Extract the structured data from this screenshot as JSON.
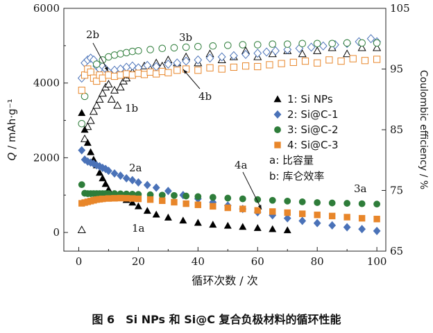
{
  "caption": "图 6　Si NPs 和 Si@C 复合负极材料的循环性能",
  "chart_data": {
    "type": "scatter",
    "xlabel": "循环次数 / 次",
    "ylabel_left_symbol": "Q",
    "ylabel_left_unit": " / mAh·g⁻¹",
    "ylabel_right": "Coulombic efficiency / %",
    "xlim": [
      -5,
      103
    ],
    "ylim_left": [
      -500,
      6000
    ],
    "ylim_right": [
      65,
      105
    ],
    "xticks": [
      0,
      20,
      40,
      60,
      80,
      100
    ],
    "yticks_left": [
      0,
      2000,
      4000,
      6000
    ],
    "yticks_right": [
      65,
      75,
      85,
      95,
      105
    ],
    "grid": false,
    "legend": {
      "placement": "right-middle",
      "entries": [
        "1: Si NPs",
        "2: Si@C-1",
        "3: Si@C-2",
        "4: Si@C-3"
      ]
    },
    "legend_note": [
      "a: 比容量",
      "b: 库仑效率"
    ],
    "curve_labels": {
      "1a": "1a",
      "2a": "2a",
      "3a": "3a",
      "4a": "4a",
      "1b": "1b",
      "2b": "2b",
      "3b": "3b",
      "4b": "4b"
    },
    "series": [
      {
        "name": "1: Si NPs",
        "color": "#000000",
        "marker": "triangle",
        "capacity": {
          "x": [
            1,
            2,
            3,
            4,
            5,
            6,
            7,
            8,
            9,
            10,
            12,
            14,
            16,
            18,
            20,
            23,
            26,
            30,
            35,
            40,
            45,
            50,
            55,
            60,
            65,
            70
          ],
          "y": [
            3200,
            2750,
            2400,
            2150,
            1950,
            1800,
            1600,
            1450,
            1300,
            1150,
            1020,
            950,
            870,
            800,
            700,
            580,
            480,
            400,
            320,
            260,
            210,
            180,
            150,
            120,
            90,
            60
          ]
        },
        "efficiency": {
          "x": [
            1,
            2,
            3,
            4,
            5,
            6,
            7,
            8,
            9,
            10,
            11,
            12,
            13,
            14,
            15,
            16,
            17,
            18,
            20,
            22,
            24,
            26,
            28,
            30,
            33,
            36,
            40,
            44,
            48,
            52,
            56,
            60,
            65,
            70,
            75,
            80,
            85,
            90,
            95,
            100
          ],
          "y": [
            68.5,
            83.5,
            85.5,
            86.5,
            88.0,
            89.0,
            90.0,
            91.0,
            92.0,
            92.5,
            90.0,
            91.5,
            89.0,
            92.0,
            93.0,
            93.5,
            94.0,
            94.5,
            95.0,
            95.5,
            95.0,
            96.0,
            95.5,
            96.5,
            96.0,
            97.0,
            96.0,
            97.5,
            96.5,
            97.0,
            98.0,
            97.0,
            97.5,
            98.0,
            97.5,
            98.0,
            98.5,
            97.5,
            98.5,
            98.5
          ]
        }
      },
      {
        "name": "2: Si@C-1",
        "color": "#4a72b8",
        "marker": "diamond",
        "capacity": {
          "x": [
            1,
            2,
            3,
            4,
            5,
            6,
            7,
            8,
            9,
            10,
            12,
            14,
            16,
            18,
            20,
            23,
            26,
            30,
            35,
            40,
            45,
            50,
            55,
            60,
            65,
            70,
            75,
            80,
            85,
            90,
            95,
            100
          ],
          "y": [
            2200,
            1950,
            1900,
            1870,
            1840,
            1800,
            1770,
            1730,
            1700,
            1650,
            1580,
            1520,
            1450,
            1400,
            1340,
            1270,
            1200,
            1110,
            1000,
            900,
            810,
            720,
            630,
            540,
            460,
            380,
            310,
            250,
            190,
            140,
            90,
            40
          ]
        },
        "efficiency": {
          "x": [
            1,
            2,
            3,
            4,
            5,
            6,
            7,
            8,
            9,
            10,
            12,
            14,
            16,
            18,
            20,
            23,
            26,
            30,
            33,
            36,
            40,
            44,
            48,
            52,
            56,
            60,
            63,
            66,
            70,
            74,
            78,
            82,
            86,
            90,
            94,
            98,
            100
          ],
          "y": [
            93.5,
            96.0,
            96.5,
            96.8,
            96.5,
            95.5,
            95.0,
            95.5,
            95.0,
            94.5,
            94.8,
            95.0,
            95.3,
            95.5,
            95.2,
            95.6,
            95.4,
            95.8,
            96.0,
            96.3,
            96.5,
            96.8,
            97.0,
            97.2,
            97.4,
            97.6,
            97.8,
            98.0,
            98.2,
            98.4,
            98.6,
            98.8,
            99.0,
            99.2,
            99.5,
            100.0,
            99.5
          ]
        }
      },
      {
        "name": "3: Si@C-2",
        "color": "#2e7d3a",
        "marker": "circle",
        "capacity": {
          "x": [
            1,
            2,
            3,
            4,
            5,
            6,
            7,
            8,
            9,
            10,
            12,
            14,
            16,
            18,
            20,
            24,
            28,
            32,
            36,
            40,
            45,
            50,
            55,
            60,
            65,
            70,
            75,
            80,
            85,
            90,
            95,
            100
          ],
          "y": [
            1280,
            1050,
            1040,
            1040,
            1040,
            1040,
            1040,
            1040,
            1040,
            1040,
            1040,
            1035,
            1030,
            1025,
            1020,
            1010,
            1000,
            990,
            975,
            960,
            940,
            920,
            900,
            880,
            860,
            840,
            820,
            800,
            790,
            780,
            770,
            760
          ]
        },
        "efficiency": {
          "x": [
            1,
            2,
            4,
            6,
            8,
            10,
            12,
            14,
            16,
            18,
            20,
            24,
            28,
            32,
            36,
            40,
            45,
            50,
            55,
            60,
            65,
            70,
            75,
            80,
            85,
            90,
            95,
            100
          ],
          "y": [
            86.0,
            90.5,
            94.5,
            95.8,
            96.5,
            97.0,
            97.3,
            97.5,
            97.7,
            97.9,
            98.0,
            98.2,
            98.4,
            98.5,
            98.6,
            98.7,
            98.8,
            98.9,
            99.0,
            99.0,
            99.1,
            99.1,
            99.2,
            99.2,
            99.2,
            99.3,
            99.3,
            99.3
          ]
        }
      },
      {
        "name": "4: Si@C-3",
        "color": "#e8862a",
        "marker": "square",
        "capacity": {
          "x": [
            1,
            2,
            3,
            4,
            5,
            6,
            7,
            8,
            10,
            12,
            14,
            16,
            18,
            20,
            24,
            28,
            32,
            36,
            40,
            45,
            50,
            55,
            60,
            65,
            70,
            75,
            80,
            85,
            90,
            95,
            100
          ],
          "y": [
            780,
            800,
            820,
            840,
            860,
            880,
            890,
            900,
            910,
            915,
            920,
            915,
            910,
            900,
            880,
            850,
            810,
            770,
            740,
            700,
            660,
            630,
            590,
            560,
            530,
            500,
            470,
            440,
            410,
            380,
            360
          ]
        },
        "efficiency": {
          "x": [
            1,
            2,
            3,
            4,
            5,
            6,
            7,
            8,
            10,
            12,
            14,
            16,
            18,
            20,
            22,
            24,
            26,
            28,
            30,
            33,
            36,
            40,
            44,
            48,
            52,
            56,
            60,
            64,
            68,
            72,
            76,
            80,
            84,
            88,
            92,
            96,
            100
          ],
          "y": [
            91.5,
            94.0,
            95.0,
            94.5,
            93.5,
            93.0,
            94.0,
            93.5,
            94.0,
            93.8,
            94.0,
            94.2,
            94.0,
            94.3,
            94.1,
            94.5,
            94.2,
            94.6,
            94.4,
            94.8,
            95.0,
            94.8,
            95.2,
            95.0,
            95.3,
            95.5,
            95.4,
            95.7,
            95.9,
            96.1,
            96.3,
            96.0,
            96.5,
            96.3,
            96.7,
            96.4,
            96.6
          ]
        }
      }
    ]
  }
}
